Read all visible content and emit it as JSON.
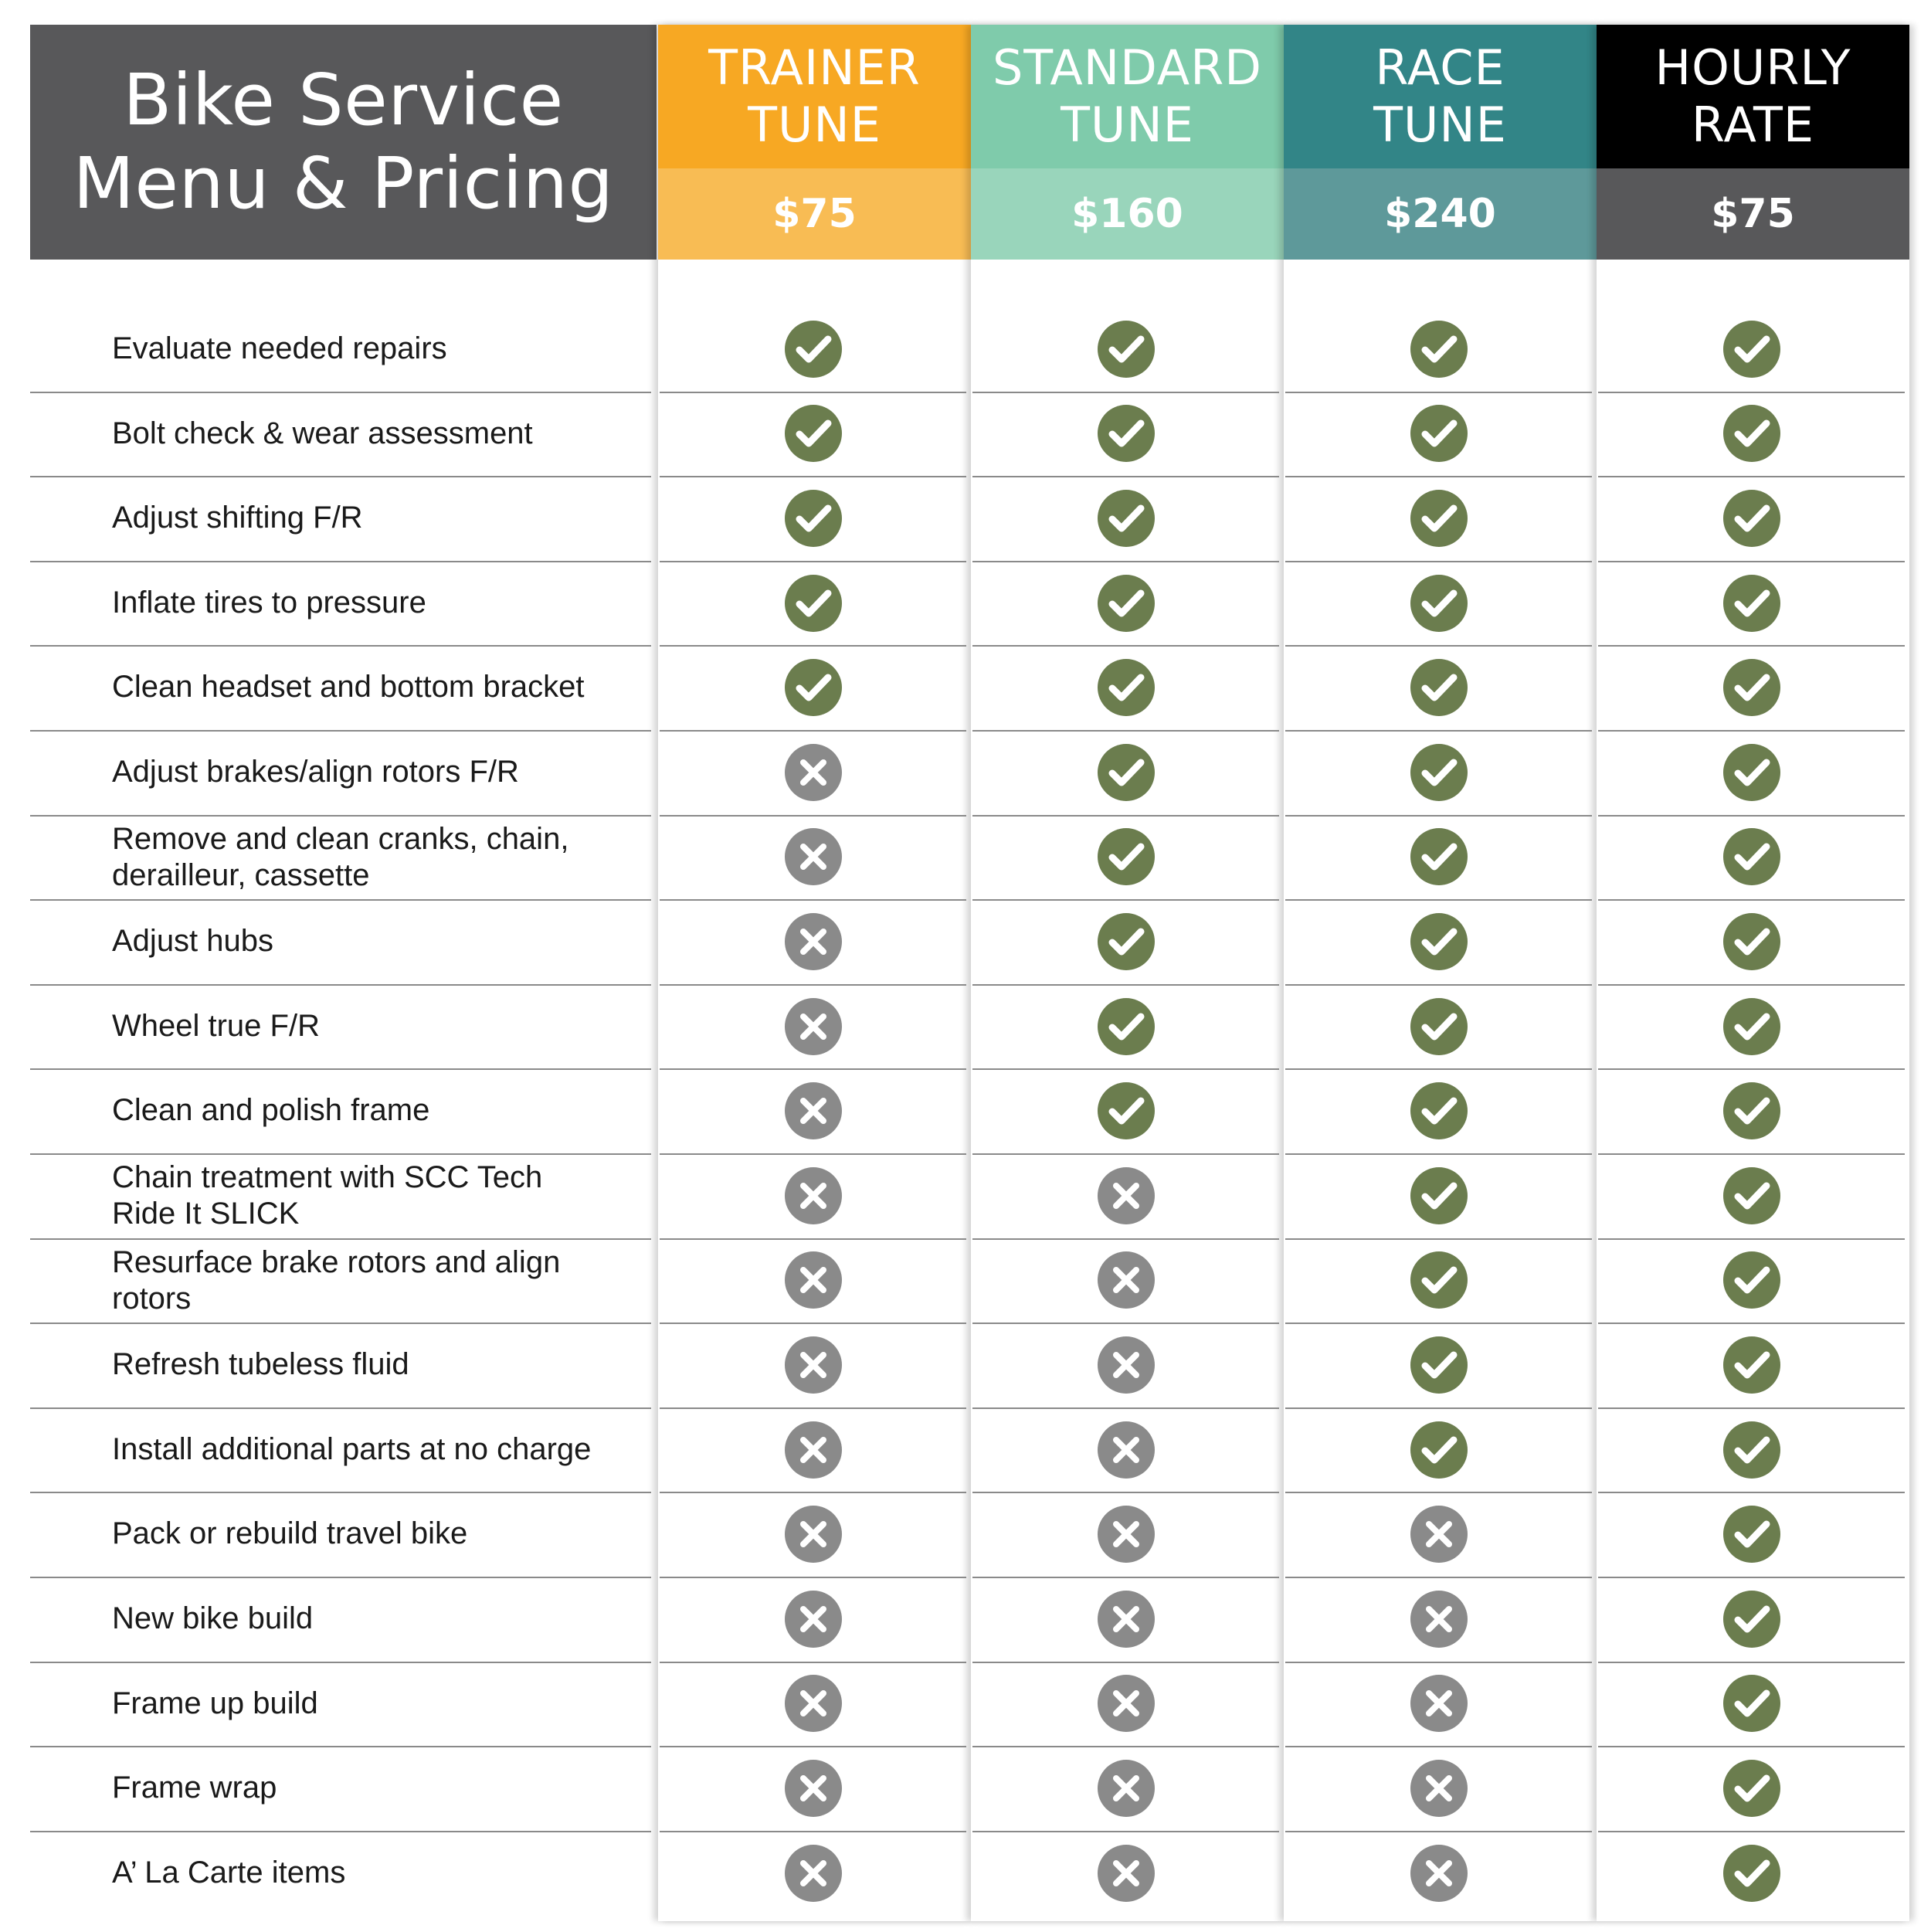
{
  "title": {
    "line1": "Bike Service",
    "line2": "Menu & Pricing"
  },
  "plans": [
    {
      "id": "trainer",
      "name1": "TRAINER",
      "name2": "TUNE",
      "price": "$75",
      "head_color": "#f7a823",
      "price_color": "#f8bc54"
    },
    {
      "id": "standard",
      "name1": "STANDARD",
      "name2": "TUNE",
      "price": "$160",
      "head_color": "#7fcbab",
      "price_color": "#99d5bb"
    },
    {
      "id": "race",
      "name1": "RACE",
      "name2": "TUNE",
      "price": "$240",
      "head_color": "#328587",
      "price_color": "#5e999a"
    },
    {
      "id": "hourly",
      "name1": "HOURLY",
      "name2": "RATE",
      "price": "$75",
      "head_color": "#000000",
      "price_color": "#58585a"
    }
  ],
  "colors": {
    "included": "#6b7d4e",
    "excluded": "#8a8a8a"
  },
  "features": [
    {
      "label": "Evaluate needed repairs",
      "included": [
        true,
        true,
        true,
        true
      ]
    },
    {
      "label": "Bolt check & wear assessment",
      "included": [
        true,
        true,
        true,
        true
      ]
    },
    {
      "label": "Adjust shifting F/R",
      "included": [
        true,
        true,
        true,
        true
      ]
    },
    {
      "label": "Inflate tires to pressure",
      "included": [
        true,
        true,
        true,
        true
      ]
    },
    {
      "label": "Clean headset and bottom bracket",
      "included": [
        true,
        true,
        true,
        true
      ]
    },
    {
      "label": "Adjust brakes/align rotors F/R",
      "included": [
        false,
        true,
        true,
        true
      ]
    },
    {
      "label": "Remove and clean cranks, chain, derailleur, cassette",
      "included": [
        false,
        true,
        true,
        true
      ]
    },
    {
      "label": "Adjust hubs",
      "included": [
        false,
        true,
        true,
        true
      ]
    },
    {
      "label": "Wheel true F/R",
      "included": [
        false,
        true,
        true,
        true
      ]
    },
    {
      "label": "Clean and polish frame",
      "included": [
        false,
        true,
        true,
        true
      ]
    },
    {
      "label": "Chain treatment with SCC Tech Ride It SLICK",
      "included": [
        false,
        false,
        true,
        true
      ]
    },
    {
      "label": "Resurface brake rotors and align rotors",
      "included": [
        false,
        false,
        true,
        true
      ]
    },
    {
      "label": "Refresh tubeless fluid",
      "included": [
        false,
        false,
        true,
        true
      ]
    },
    {
      "label": "Install additional parts at no charge",
      "included": [
        false,
        false,
        true,
        true
      ]
    },
    {
      "label": "Pack  or rebuild travel bike",
      "included": [
        false,
        false,
        false,
        true
      ]
    },
    {
      "label": "New bike build",
      "included": [
        false,
        false,
        false,
        true
      ]
    },
    {
      "label": "Frame up build",
      "included": [
        false,
        false,
        false,
        true
      ]
    },
    {
      "label": "Frame wrap",
      "included": [
        false,
        false,
        false,
        true
      ]
    },
    {
      "label": "A’ La Carte items",
      "included": [
        false,
        false,
        false,
        true
      ]
    }
  ]
}
